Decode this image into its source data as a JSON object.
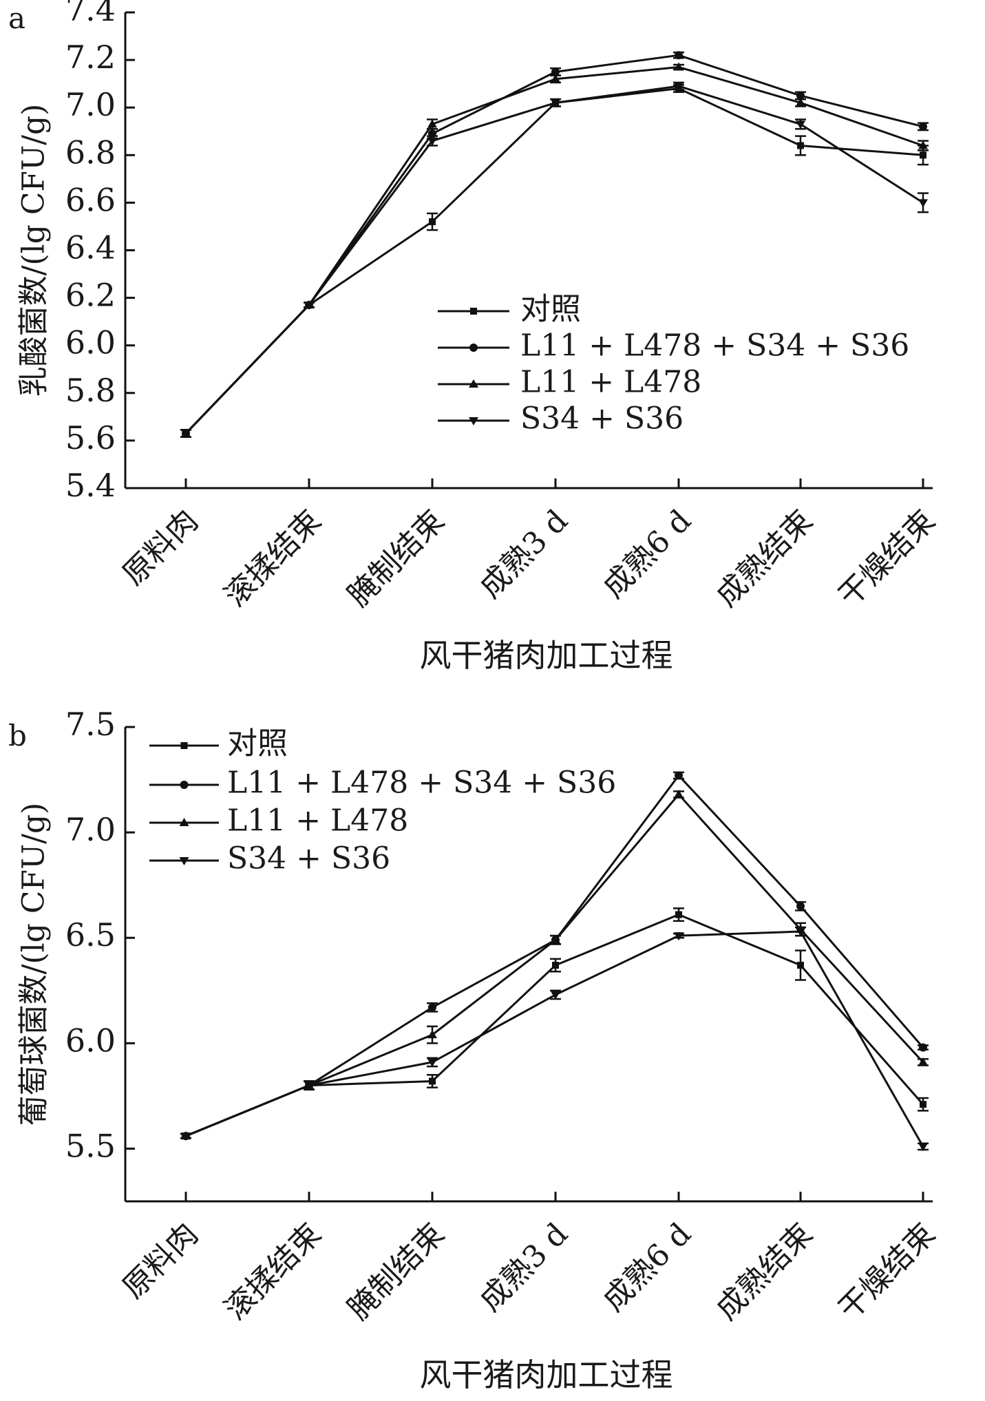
{
  "chart_data": [
    {
      "panel_label": "a",
      "type": "line",
      "categories": [
        "原料肉",
        "滚揉结束",
        "腌制结束",
        "成熟3 d",
        "成熟6 d",
        "成熟结束",
        "干燥结束"
      ],
      "xlabel": "风干猪肉加工过程",
      "ylabel": "乳酸菌数/(lg CFU/g)",
      "ylim": [
        5.4,
        7.4
      ],
      "yticks": [
        "5.4",
        "5.6",
        "5.8",
        "6.0",
        "6.2",
        "6.4",
        "6.6",
        "6.8",
        "7.0",
        "7.2",
        "7.4"
      ],
      "legend_position": "center-right",
      "series": [
        {
          "name": "对照",
          "marker": "square",
          "values": [
            5.63,
            6.17,
            6.52,
            7.02,
            7.08,
            6.84,
            6.8
          ],
          "errors": [
            0.015,
            0.01,
            0.035,
            0.015,
            0.015,
            0.04,
            0.04
          ]
        },
        {
          "name": "L11 + L478 + S34 + S36",
          "marker": "circle",
          "values": [
            5.63,
            6.17,
            6.89,
            7.15,
            7.22,
            7.05,
            6.92
          ],
          "errors": [
            0.015,
            0.01,
            0.02,
            0.015,
            0.012,
            0.015,
            0.015
          ]
        },
        {
          "name": "L11 + L478",
          "marker": "triangle-up",
          "values": [
            5.63,
            6.17,
            6.93,
            7.12,
            7.17,
            7.02,
            6.84
          ],
          "errors": [
            0.015,
            0.01,
            0.02,
            0.015,
            0.01,
            0.015,
            0.02
          ]
        },
        {
          "name": "S34 + S36",
          "marker": "triangle-down",
          "values": [
            5.63,
            6.17,
            6.86,
            7.02,
            7.09,
            6.93,
            6.6
          ],
          "errors": [
            0.015,
            0.01,
            0.02,
            0.015,
            0.015,
            0.02,
            0.04
          ]
        }
      ]
    },
    {
      "panel_label": "b",
      "type": "line",
      "categories": [
        "原料肉",
        "滚揉结束",
        "腌制结束",
        "成熟3 d",
        "成熟6 d",
        "成熟结束",
        "干燥结束"
      ],
      "xlabel": "风干猪肉加工过程",
      "ylabel": "葡萄球菌数/(lg CFU/g)",
      "ylim": [
        5.25,
        7.5
      ],
      "yticks": [
        "5.5",
        "6.0",
        "6.5",
        "7.0",
        "7.5"
      ],
      "legend_position": "top-left",
      "series": [
        {
          "name": "对照",
          "marker": "square",
          "values": [
            5.56,
            5.8,
            5.82,
            6.37,
            6.61,
            6.37,
            5.71
          ],
          "errors": [
            0.01,
            0.02,
            0.03,
            0.03,
            0.03,
            0.07,
            0.03
          ]
        },
        {
          "name": "L11 + L478 + S34 + S36",
          "marker": "circle",
          "values": [
            5.56,
            5.8,
            6.17,
            6.49,
            7.27,
            6.65,
            5.98
          ],
          "errors": [
            0.01,
            0.02,
            0.02,
            0.02,
            0.015,
            0.02,
            0.01
          ]
        },
        {
          "name": "L11 + L478",
          "marker": "triangle-up",
          "values": [
            5.56,
            5.8,
            6.04,
            6.49,
            7.18,
            6.54,
            5.91
          ],
          "errors": [
            0.01,
            0.02,
            0.04,
            0.02,
            0.015,
            0.03,
            0.015
          ]
        },
        {
          "name": "S34 + S36",
          "marker": "triangle-down",
          "values": [
            5.56,
            5.8,
            5.91,
            6.23,
            6.51,
            6.53,
            5.51
          ],
          "errors": [
            0.01,
            0.02,
            0.02,
            0.02,
            0.01,
            0.02,
            0.015
          ]
        }
      ]
    }
  ]
}
